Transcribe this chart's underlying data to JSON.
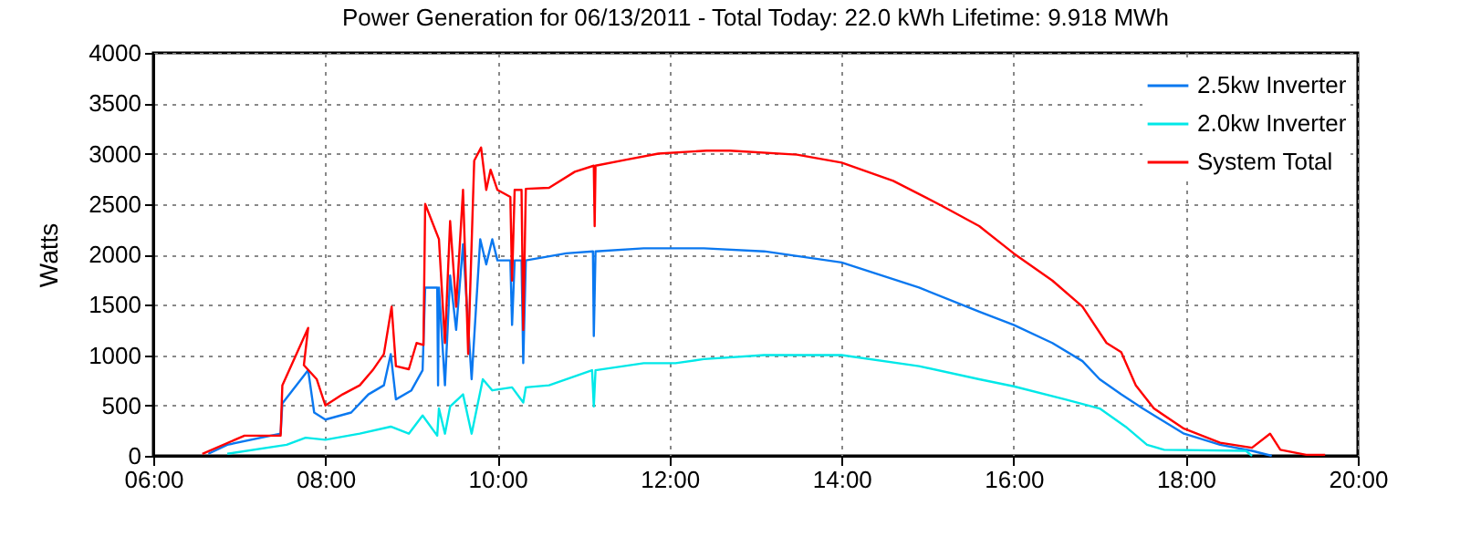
{
  "chart_data": {
    "type": "line",
    "title": "Power Generation for 06/13/2011 - Total Today: 22.0 kWh   Lifetime: 9.918 MWh",
    "ylabel": "Watts",
    "xlim": [
      6,
      20
    ],
    "xticks": [
      {
        "value": 6,
        "label": "06:00"
      },
      {
        "value": 8,
        "label": "08:00"
      },
      {
        "value": 10,
        "label": "10:00"
      },
      {
        "value": 12,
        "label": "12:00"
      },
      {
        "value": 14,
        "label": "14:00"
      },
      {
        "value": 16,
        "label": "16:00"
      },
      {
        "value": 18,
        "label": "18:00"
      },
      {
        "value": 20,
        "label": "20:00"
      }
    ],
    "ylim": [
      0,
      4000
    ],
    "yticks": [
      0,
      500,
      1000,
      1500,
      2000,
      2500,
      3000,
      3500,
      4000
    ],
    "grid": true,
    "legend": "top right",
    "marker": "none",
    "line_style": "solid",
    "series": [
      {
        "name": "2.5kw Inverter",
        "color": "#0a78f0",
        "x": [
          6.64,
          6.86,
          7.48,
          7.5,
          7.8,
          7.87,
          8.0,
          8.3,
          8.5,
          8.68,
          8.76,
          8.82,
          9.0,
          9.13,
          9.16,
          9.3,
          9.31,
          9.32,
          9.39,
          9.45,
          9.52,
          9.6,
          9.7,
          9.8,
          9.87,
          9.94,
          10.0,
          10.15,
          10.17,
          10.2,
          10.28,
          10.3,
          10.33,
          10.8,
          11.11,
          11.12,
          11.14,
          11.7,
          12.07,
          12.4,
          13.1,
          14.0,
          14.9,
          15.6,
          16.0,
          16.45,
          16.8,
          17.0,
          17.25,
          17.5,
          17.98,
          18.4,
          18.77,
          19.0
        ],
        "values": [
          20,
          110,
          220,
          520,
          850,
          430,
          360,
          430,
          610,
          700,
          1010,
          560,
          650,
          850,
          1670,
          1670,
          700,
          1670,
          700,
          1790,
          1250,
          2100,
          760,
          2150,
          1900,
          2150,
          1940,
          1940,
          1300,
          1940,
          1940,
          920,
          1940,
          2010,
          2030,
          1190,
          2030,
          2060,
          2060,
          2060,
          2030,
          1920,
          1670,
          1430,
          1300,
          1120,
          940,
          760,
          610,
          470,
          220,
          110,
          50,
          0
        ]
      },
      {
        "name": "2.0kw Inverter",
        "color": "#00e8e8",
        "x": [
          6.86,
          7.55,
          7.77,
          8.0,
          8.4,
          8.76,
          8.97,
          9.13,
          9.3,
          9.32,
          9.39,
          9.45,
          9.6,
          9.7,
          9.83,
          9.94,
          10.17,
          10.3,
          10.33,
          10.6,
          11.1,
          11.12,
          11.14,
          11.7,
          12.07,
          12.4,
          13.1,
          14.0,
          14.9,
          15.6,
          16.0,
          16.6,
          17.0,
          17.3,
          17.55,
          17.75,
          18.7,
          18.77
        ],
        "values": [
          20,
          110,
          180,
          160,
          220,
          290,
          220,
          400,
          200,
          470,
          220,
          490,
          610,
          220,
          760,
          650,
          680,
          530,
          680,
          700,
          850,
          490,
          850,
          920,
          920,
          960,
          1000,
          1000,
          890,
          760,
          690,
          560,
          470,
          290,
          110,
          60,
          50,
          0
        ]
      },
      {
        "name": "System Total",
        "color": "#ff0000",
        "x": [
          6.57,
          7.06,
          7.48,
          7.5,
          7.8,
          7.75,
          7.9,
          8.0,
          8.2,
          8.4,
          8.55,
          8.68,
          8.77,
          8.82,
          8.97,
          9.06,
          9.14,
          9.16,
          9.32,
          9.39,
          9.45,
          9.52,
          9.6,
          9.66,
          9.73,
          9.81,
          9.87,
          9.92,
          10.0,
          10.15,
          10.17,
          10.2,
          10.28,
          10.3,
          10.33,
          10.6,
          10.9,
          11.12,
          11.13,
          11.14,
          11.5,
          11.87,
          12.43,
          12.7,
          13.48,
          14.0,
          14.6,
          15.17,
          15.6,
          16.0,
          16.45,
          16.8,
          17.08,
          17.25,
          17.42,
          17.63,
          17.98,
          18.4,
          18.77,
          18.98,
          19.1,
          19.4,
          19.62
        ],
        "values": [
          20,
          200,
          200,
          700,
          1270,
          900,
          760,
          500,
          610,
          700,
          850,
          1010,
          1480,
          890,
          860,
          1120,
          1100,
          2500,
          2150,
          1120,
          2330,
          1480,
          2640,
          1010,
          2930,
          3060,
          2640,
          2840,
          2640,
          2570,
          1740,
          2640,
          2640,
          1250,
          2650,
          2660,
          2820,
          2880,
          2280,
          2880,
          2940,
          3000,
          3030,
          3030,
          2990,
          2910,
          2730,
          2480,
          2280,
          2010,
          1740,
          1480,
          1120,
          1030,
          700,
          470,
          270,
          130,
          80,
          220,
          60,
          10,
          10
        ]
      }
    ]
  }
}
